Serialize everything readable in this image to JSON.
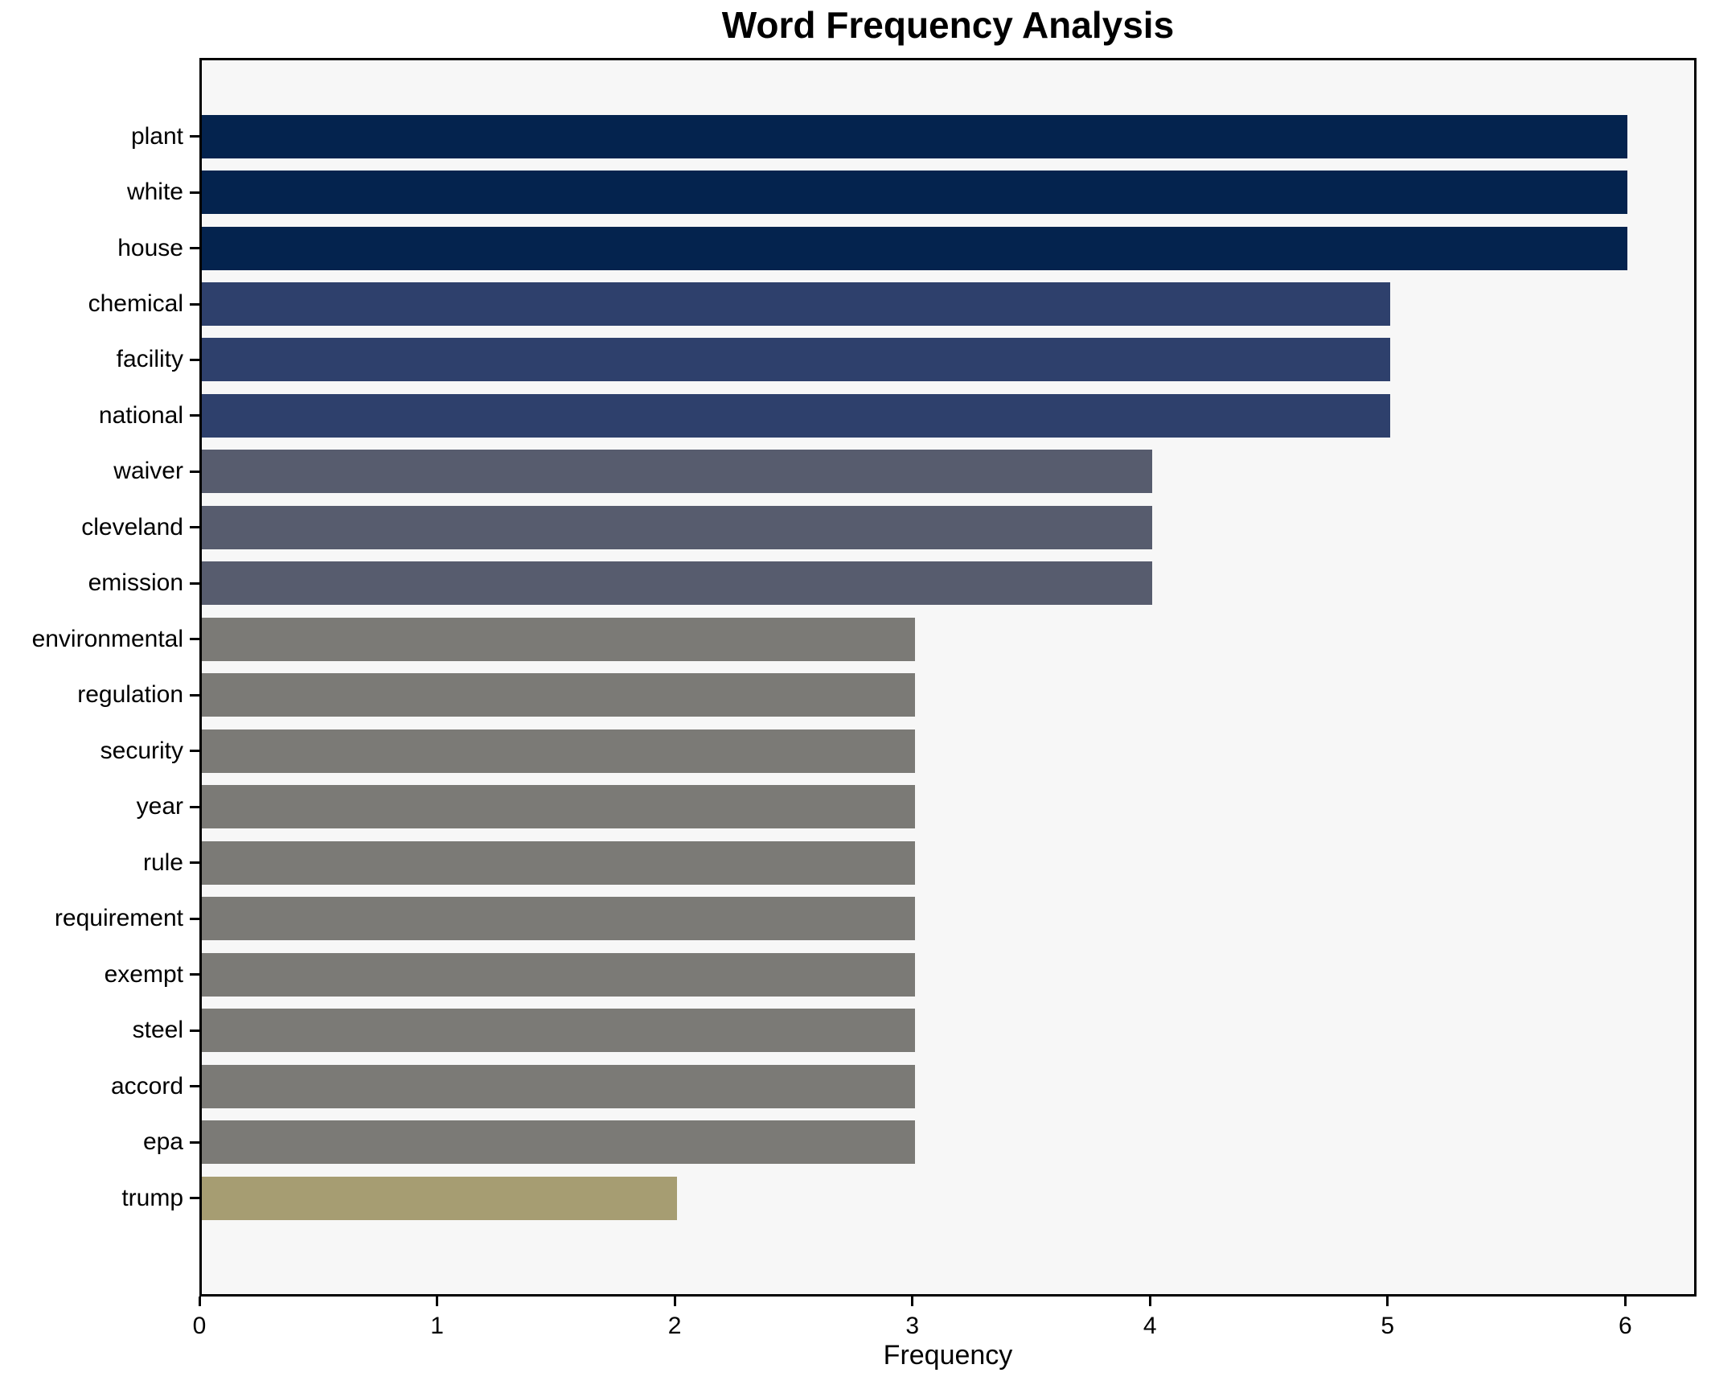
{
  "chart_data": {
    "type": "bar",
    "orientation": "horizontal",
    "title": "Word Frequency Analysis",
    "xlabel": "Frequency",
    "ylabel": "",
    "xlim": [
      0,
      6.3
    ],
    "grid": false,
    "legend": "none",
    "x_ticks": [
      0,
      1,
      2,
      3,
      4,
      5,
      6
    ],
    "categories": [
      "plant",
      "white",
      "house",
      "chemical",
      "facility",
      "national",
      "waiver",
      "cleveland",
      "emission",
      "environmental",
      "regulation",
      "security",
      "year",
      "rule",
      "requirement",
      "exempt",
      "steel",
      "accord",
      "epa",
      "trump"
    ],
    "values": [
      6,
      6,
      6,
      5,
      5,
      5,
      4,
      4,
      4,
      3,
      3,
      3,
      3,
      3,
      3,
      3,
      3,
      3,
      3,
      2
    ],
    "value_color_map": {
      "6": "#04234e",
      "5": "#2e406c",
      "4": "#575c6e",
      "3": "#7b7a76",
      "2": "#a69d72"
    }
  },
  "colors": {
    "figure_bg": "#ffffff",
    "plot_bg": "#f7f7f7",
    "axis": "#000000",
    "text": "#000000"
  }
}
